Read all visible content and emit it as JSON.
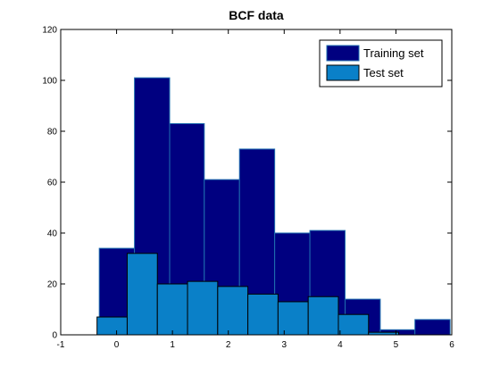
{
  "chart_data": {
    "type": "bar",
    "subtype": "overlaid-histogram",
    "title": "BCF data",
    "xlabel": "",
    "ylabel": "",
    "xlim": [
      -1,
      6
    ],
    "ylim": [
      0,
      120
    ],
    "xticks": [
      "-1",
      "0",
      "1",
      "2",
      "3",
      "4",
      "5",
      "6"
    ],
    "yticks": [
      "0",
      "20",
      "40",
      "60",
      "80",
      "100",
      "120"
    ],
    "grid": false,
    "legend_position": "top-right",
    "series": [
      {
        "name": "Training set",
        "color": "#000080",
        "edge_color": "#1f6fb0",
        "bins": [
          {
            "x0": -0.31,
            "x1": 0.32,
            "value": 34
          },
          {
            "x0": 0.32,
            "x1": 0.95,
            "value": 101
          },
          {
            "x0": 0.95,
            "x1": 1.57,
            "value": 83
          },
          {
            "x0": 1.57,
            "x1": 2.2,
            "value": 61
          },
          {
            "x0": 2.2,
            "x1": 2.83,
            "value": 73
          },
          {
            "x0": 2.83,
            "x1": 3.46,
            "value": 40
          },
          {
            "x0": 3.46,
            "x1": 4.09,
            "value": 41
          },
          {
            "x0": 4.09,
            "x1": 4.72,
            "value": 14
          },
          {
            "x0": 4.72,
            "x1": 5.34,
            "value": 2
          },
          {
            "x0": 5.34,
            "x1": 5.97,
            "value": 6
          }
        ]
      },
      {
        "name": "Test set",
        "color": "#0a80c8",
        "edge_color": "#000000",
        "bins": [
          {
            "x0": -0.35,
            "x1": 0.19,
            "value": 7
          },
          {
            "x0": 0.19,
            "x1": 0.73,
            "value": 32
          },
          {
            "x0": 0.73,
            "x1": 1.27,
            "value": 20
          },
          {
            "x0": 1.27,
            "x1": 1.81,
            "value": 21
          },
          {
            "x0": 1.81,
            "x1": 2.35,
            "value": 19
          },
          {
            "x0": 2.35,
            "x1": 2.89,
            "value": 16
          },
          {
            "x0": 2.89,
            "x1": 3.43,
            "value": 13
          },
          {
            "x0": 3.43,
            "x1": 3.97,
            "value": 15
          },
          {
            "x0": 3.97,
            "x1": 4.51,
            "value": 8
          },
          {
            "x0": 4.51,
            "x1": 5.05,
            "value": 1
          }
        ]
      }
    ]
  }
}
